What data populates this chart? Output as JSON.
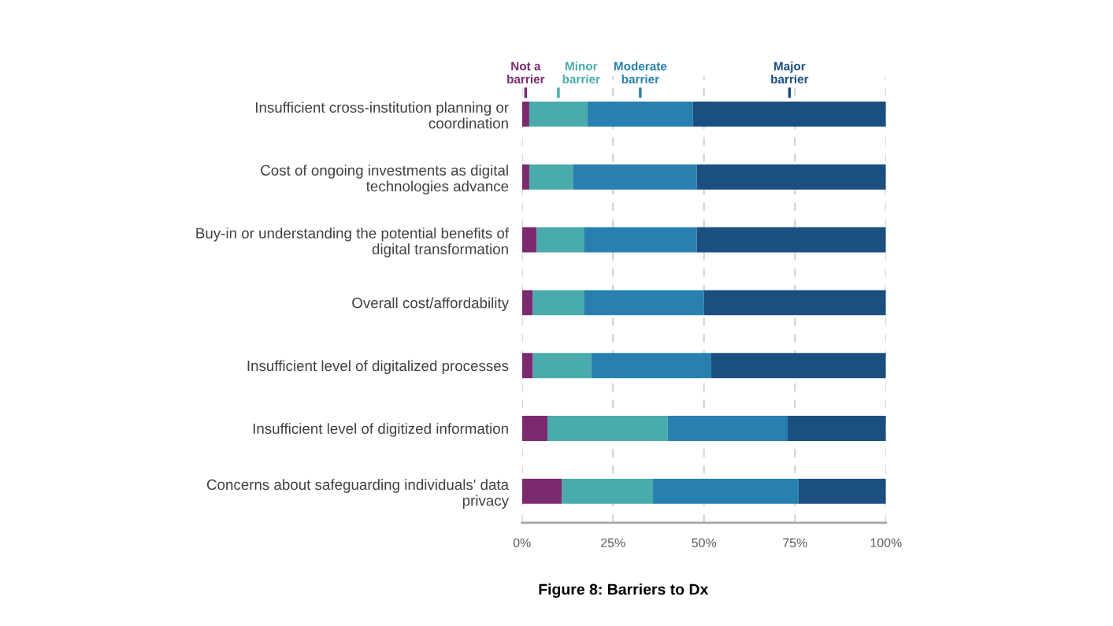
{
  "chart_data": {
    "type": "bar",
    "orientation": "horizontal",
    "stacked": true,
    "title": "Figure 8: Barriers to Dx",
    "categories": [
      "Insufficient cross-institution planning or coordination",
      "Cost of ongoing investments as digital technologies advance",
      "Buy-in or understanding the potential benefits of digital transformation",
      "Overall cost/affordability",
      "Insufficient level of digitalized processes",
      "Insufficient level of digitized information",
      "Concerns about safeguarding individuals' data privacy"
    ],
    "series": [
      {
        "name": "Not a barrier",
        "color": "#7b2a6f",
        "values": [
          2,
          2,
          4,
          3,
          3,
          7,
          11
        ]
      },
      {
        "name": "Minor barrier",
        "color": "#4aabab",
        "values": [
          16,
          12,
          13,
          14,
          16,
          33,
          25
        ]
      },
      {
        "name": "Moderate barrier",
        "color": "#2880b0",
        "values": [
          29,
          34,
          31,
          33,
          33,
          33,
          40
        ]
      },
      {
        "name": "Major barrier",
        "color": "#1b4f80",
        "values": [
          53,
          52,
          52,
          50,
          48,
          27,
          24
        ]
      }
    ],
    "xlim": [
      0,
      100
    ],
    "xticks": [
      {
        "value": 0,
        "label": "0%"
      },
      {
        "value": 25,
        "label": "25%"
      },
      {
        "value": 50,
        "label": "50%"
      },
      {
        "value": 75,
        "label": "75%"
      },
      {
        "value": 100,
        "label": "100%"
      }
    ],
    "grid": "x",
    "legend": "top"
  }
}
